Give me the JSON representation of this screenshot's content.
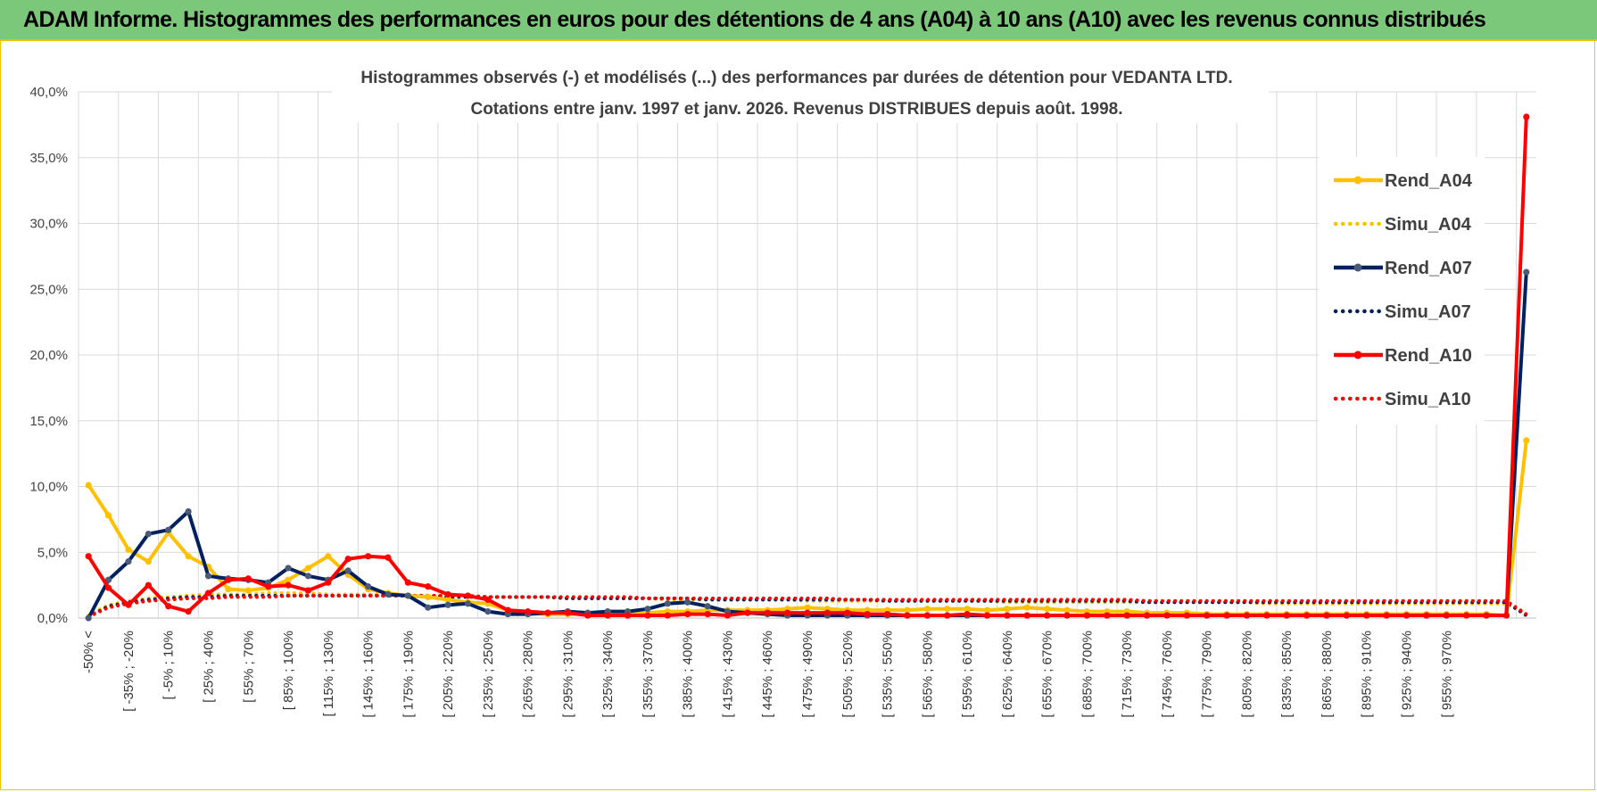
{
  "header": {
    "title": "ADAM Informe. Histogrammes des performances en euros pour des détentions de 4 ans (A04) à 10 ans (A10) avec les revenus connus distribués"
  },
  "colors": {
    "a04": "#ffc000",
    "a07": "#002060",
    "a10": "#ff0000",
    "grid": "#d9d9d9",
    "header_bg": "#7cc87a"
  },
  "chart_data": {
    "type": "line",
    "title": "Histogrammes observés (-) et modélisés (...) des performances par durées de détention pour VEDANTA LTD.",
    "subtitle": "Cotations entre janv. 1997 et janv. 2026. Revenus DISTRIBUES depuis août. 1998.",
    "ylim": [
      0,
      40
    ],
    "yticks": [
      "0,0%",
      "5,0%",
      "10,0%",
      "15,0%",
      "20,0%",
      "25,0%",
      "30,0%",
      "35,0%",
      "40,0%"
    ],
    "ytick_values": [
      0,
      5,
      10,
      15,
      20,
      25,
      30,
      35,
      40
    ],
    "xtick_labels": [
      "-50% <",
      "[ -35% ; -20%",
      "[ -5% ; 10%",
      "[ 25% ; 40%",
      "[ 55% ; 70%",
      "[ 85% ; 100%",
      "[ 115% ; 130%",
      "[ 145% ; 160%",
      "[ 175% ; 190%",
      "[ 205% ; 220%",
      "[ 235% ; 250%",
      "[ 265% ; 280%",
      "[ 295% ; 310%",
      "[ 325% ; 340%",
      "[ 355% ; 370%",
      "[ 385% ; 400%",
      "[ 415% ; 430%",
      "[ 445% ; 460%",
      "[ 475% ; 490%",
      "[ 505% ; 520%",
      "[ 535% ; 550%",
      "[ 565% ; 580%",
      "[ 595% ; 610%",
      "[ 625% ; 640%",
      "[ 655% ; 670%",
      "[ 685% ; 700%",
      "[ 715% ; 730%",
      "[ 745% ; 760%",
      "[ 775% ; 790%",
      "[ 805% ; 820%",
      "[ 835% ; 850%",
      "[ 865% ; 880%",
      "[ 895% ; 910%",
      "[ 925% ; 940%",
      "[ 955% ; 970%"
    ],
    "legend_position": "right",
    "grid": true,
    "series": [
      {
        "name": "Rend_A04",
        "style": "solid",
        "color": "#ffc000",
        "values": [
          10.1,
          7.8,
          5.2,
          4.3,
          6.5,
          4.7,
          3.9,
          2.2,
          2.1,
          2.3,
          2.9,
          3.8,
          4.7,
          3.3,
          2.2,
          1.9,
          1.7,
          1.6,
          1.4,
          1.2,
          1.1,
          0.6,
          0.4,
          0.3,
          0.3,
          0.3,
          0.2,
          0.3,
          0.4,
          0.5,
          0.5,
          0.6,
          0.6,
          0.6,
          0.6,
          0.7,
          0.8,
          0.7,
          0.6,
          0.6,
          0.6,
          0.6,
          0.7,
          0.7,
          0.7,
          0.6,
          0.7,
          0.8,
          0.7,
          0.6,
          0.5,
          0.5,
          0.5,
          0.4,
          0.4,
          0.4,
          0.3,
          0.3,
          0.3,
          0.3,
          0.3,
          0.3,
          0.3,
          0.3,
          0.3,
          0.3,
          0.3,
          0.3,
          0.3,
          0.3,
          0.3,
          0.2,
          13.5
        ]
      },
      {
        "name": "Simu_A04",
        "style": "dotted",
        "color": "#ffc000",
        "values": [
          0.2,
          1.0,
          1.3,
          1.5,
          1.6,
          1.7,
          1.8,
          1.8,
          1.8,
          1.9,
          1.9,
          1.9,
          1.8,
          1.8,
          1.8,
          1.8,
          1.7,
          1.7,
          1.7,
          1.7,
          1.6,
          1.6,
          1.6,
          1.6,
          1.5,
          1.5,
          1.5,
          1.5,
          1.5,
          1.4,
          1.4,
          1.4,
          1.4,
          1.4,
          1.4,
          1.4,
          1.3,
          1.3,
          1.3,
          1.3,
          1.3,
          1.3,
          1.3,
          1.3,
          1.3,
          1.3,
          1.2,
          1.2,
          1.2,
          1.2,
          1.2,
          1.2,
          1.2,
          1.2,
          1.2,
          1.2,
          1.2,
          1.2,
          1.2,
          1.1,
          1.1,
          1.1,
          1.1,
          1.1,
          1.1,
          1.1,
          1.1,
          1.1,
          1.1,
          1.1,
          1.1,
          1.1,
          0.3
        ]
      },
      {
        "name": "Rend_A07",
        "style": "solid",
        "color": "#002060",
        "values": [
          0.0,
          2.9,
          4.3,
          6.4,
          6.7,
          8.1,
          3.2,
          3.0,
          2.9,
          2.7,
          3.8,
          3.2,
          2.9,
          3.6,
          2.4,
          1.8,
          1.7,
          0.8,
          1.0,
          1.1,
          0.5,
          0.3,
          0.3,
          0.4,
          0.5,
          0.4,
          0.5,
          0.5,
          0.7,
          1.1,
          1.2,
          0.9,
          0.5,
          0.4,
          0.3,
          0.2,
          0.2,
          0.2,
          0.2,
          0.2,
          0.2,
          0.2,
          0.2,
          0.2,
          0.2,
          0.2,
          0.2,
          0.2,
          0.2,
          0.2,
          0.2,
          0.2,
          0.2,
          0.2,
          0.2,
          0.2,
          0.2,
          0.2,
          0.2,
          0.2,
          0.2,
          0.2,
          0.2,
          0.2,
          0.2,
          0.2,
          0.2,
          0.2,
          0.2,
          0.2,
          0.2,
          0.2,
          26.3
        ]
      },
      {
        "name": "Simu_A07",
        "style": "dotted",
        "color": "#002060",
        "values": [
          0.1,
          0.9,
          1.2,
          1.4,
          1.5,
          1.6,
          1.6,
          1.7,
          1.7,
          1.7,
          1.7,
          1.7,
          1.7,
          1.7,
          1.7,
          1.7,
          1.7,
          1.7,
          1.6,
          1.6,
          1.6,
          1.6,
          1.6,
          1.6,
          1.5,
          1.5,
          1.5,
          1.5,
          1.5,
          1.5,
          1.5,
          1.4,
          1.4,
          1.4,
          1.4,
          1.4,
          1.4,
          1.4,
          1.4,
          1.4,
          1.3,
          1.3,
          1.3,
          1.3,
          1.3,
          1.3,
          1.3,
          1.3,
          1.3,
          1.3,
          1.3,
          1.3,
          1.3,
          1.2,
          1.2,
          1.2,
          1.2,
          1.2,
          1.2,
          1.2,
          1.2,
          1.2,
          1.2,
          1.2,
          1.2,
          1.2,
          1.2,
          1.2,
          1.2,
          1.2,
          1.2,
          1.2,
          0.2
        ]
      },
      {
        "name": "Rend_A10",
        "style": "solid",
        "color": "#ff0000",
        "values": [
          4.7,
          2.3,
          1.0,
          2.5,
          0.9,
          0.5,
          1.9,
          2.9,
          3.0,
          2.4,
          2.5,
          2.1,
          2.7,
          4.5,
          4.7,
          4.6,
          2.7,
          2.4,
          1.8,
          1.7,
          1.4,
          0.6,
          0.5,
          0.4,
          0.4,
          0.2,
          0.2,
          0.2,
          0.2,
          0.2,
          0.3,
          0.3,
          0.2,
          0.4,
          0.4,
          0.4,
          0.4,
          0.4,
          0.4,
          0.3,
          0.3,
          0.2,
          0.2,
          0.2,
          0.3,
          0.2,
          0.2,
          0.2,
          0.2,
          0.2,
          0.2,
          0.2,
          0.2,
          0.2,
          0.2,
          0.2,
          0.2,
          0.2,
          0.2,
          0.2,
          0.2,
          0.2,
          0.2,
          0.2,
          0.2,
          0.2,
          0.2,
          0.2,
          0.2,
          0.2,
          0.2,
          0.2,
          38.1
        ]
      },
      {
        "name": "Simu_A10",
        "style": "dotted",
        "color": "#ff0000",
        "values": [
          0.1,
          0.8,
          1.1,
          1.3,
          1.4,
          1.5,
          1.5,
          1.6,
          1.6,
          1.6,
          1.7,
          1.7,
          1.7,
          1.7,
          1.7,
          1.7,
          1.7,
          1.7,
          1.7,
          1.7,
          1.6,
          1.6,
          1.6,
          1.6,
          1.6,
          1.6,
          1.6,
          1.6,
          1.5,
          1.5,
          1.5,
          1.5,
          1.5,
          1.5,
          1.5,
          1.5,
          1.5,
          1.5,
          1.4,
          1.4,
          1.4,
          1.4,
          1.4,
          1.4,
          1.4,
          1.4,
          1.4,
          1.4,
          1.4,
          1.4,
          1.4,
          1.4,
          1.4,
          1.3,
          1.3,
          1.3,
          1.3,
          1.3,
          1.3,
          1.3,
          1.3,
          1.3,
          1.3,
          1.3,
          1.3,
          1.3,
          1.3,
          1.3,
          1.3,
          1.3,
          1.3,
          1.3,
          0.3
        ]
      }
    ]
  }
}
